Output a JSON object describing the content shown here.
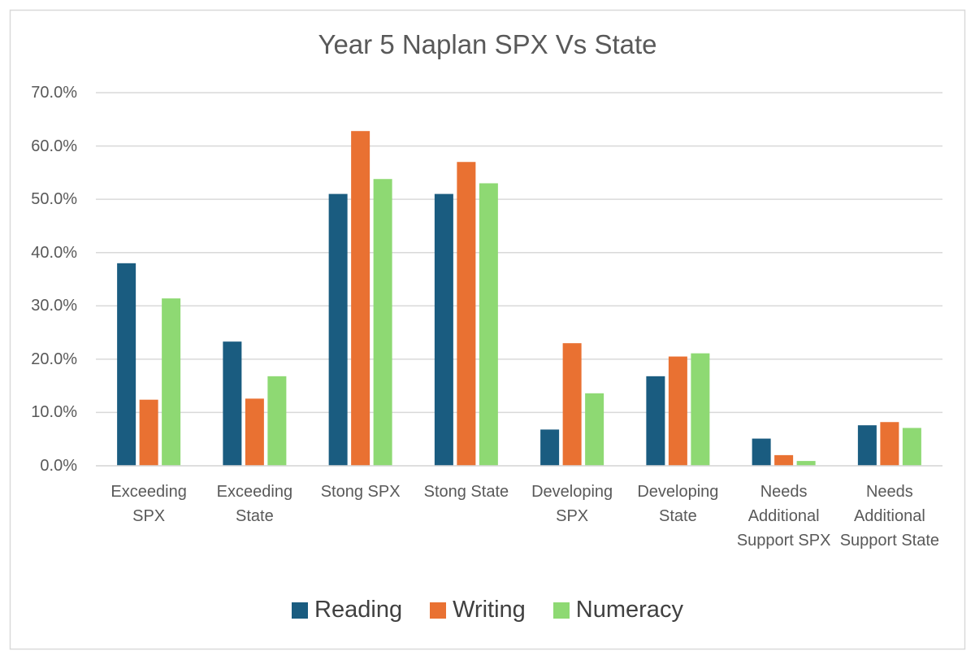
{
  "chart_data": {
    "type": "bar",
    "title": "Year 5 Naplan SPX Vs State",
    "categories": [
      "Exceeding SPX",
      "Exceeding State",
      "Stong SPX",
      "Stong State",
      "Developing SPX",
      "Developing State",
      "Needs Additional Support SPX",
      "Needs Additional Support State"
    ],
    "series": [
      {
        "name": "Reading",
        "color": "#1a5c80",
        "values": [
          38,
          23.3,
          51,
          51,
          6.8,
          16.8,
          5.1,
          7.6
        ]
      },
      {
        "name": "Writing",
        "color": "#e97132",
        "values": [
          12.4,
          12.6,
          62.8,
          57,
          23,
          20.5,
          2,
          8.2
        ]
      },
      {
        "name": "Numeracy",
        "color": "#8ed973",
        "values": [
          31.4,
          16.8,
          53.8,
          53,
          13.6,
          21.1,
          0.9,
          7.1
        ]
      }
    ],
    "ylim": [
      0,
      70
    ],
    "yticks": [
      {
        "value": 0,
        "label": "0.0%"
      },
      {
        "value": 10,
        "label": "10.0%"
      },
      {
        "value": 20,
        "label": "20.0%"
      },
      {
        "value": 30,
        "label": "30.0%"
      },
      {
        "value": 40,
        "label": "40.0%"
      },
      {
        "value": 50,
        "label": "50.0%"
      },
      {
        "value": 60,
        "label": "60.0%"
      },
      {
        "value": 70,
        "label": "70.0%"
      }
    ],
    "grid": true,
    "legend": "bottom"
  }
}
